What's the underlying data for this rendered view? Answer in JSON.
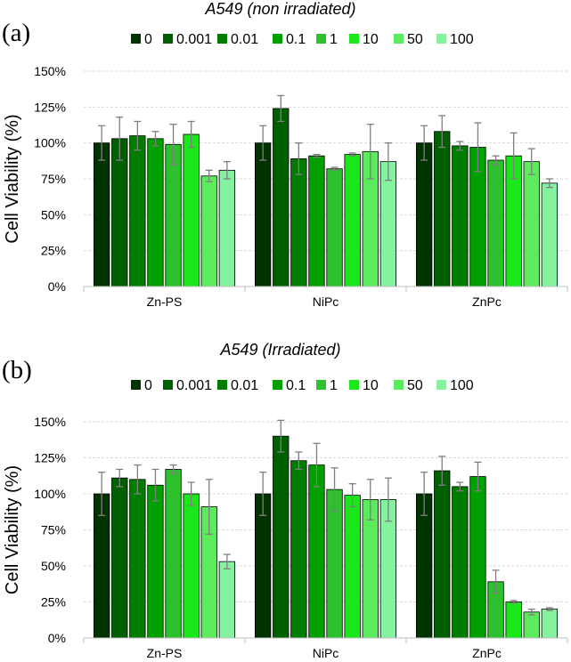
{
  "colors": {
    "series": [
      "#003300",
      "#005F00",
      "#007D00",
      "#00A000",
      "#2EC12E",
      "#1AE81A",
      "#5CEB5C",
      "#85F2A0"
    ],
    "bar_edge": "#000000",
    "error_bar": "#7F7F7F",
    "grid": "#D9D9D9"
  },
  "chart_data": [
    {
      "type": "bar",
      "panel_label": "(a)",
      "title": "A549 (non irradiated)",
      "ylabel": "Cell Viability (%)",
      "xlabel": "",
      "ylim": [
        0,
        150
      ],
      "yticks": [
        0,
        25,
        50,
        75,
        100,
        125,
        150
      ],
      "ytick_labels": [
        "0%",
        "25%",
        "50%",
        "75%",
        "100%",
        "125%",
        "150%"
      ],
      "grid": true,
      "legend_position": "top",
      "categories": [
        "Zn-PS",
        "NiPc",
        "ZnPc"
      ],
      "series": [
        {
          "name": "0",
          "values": [
            100,
            100,
            100
          ],
          "errors": [
            12,
            12,
            12
          ]
        },
        {
          "name": "0.001",
          "values": [
            103,
            124,
            108
          ],
          "errors": [
            15,
            9,
            11
          ]
        },
        {
          "name": "0.01",
          "values": [
            105,
            89,
            98
          ],
          "errors": [
            10,
            11,
            3
          ]
        },
        {
          "name": "0.1",
          "values": [
            103,
            91,
            97
          ],
          "errors": [
            5,
            1,
            17
          ]
        },
        {
          "name": "1",
          "values": [
            99,
            82,
            88
          ],
          "errors": [
            14,
            1,
            3
          ]
        },
        {
          "name": "10",
          "values": [
            106,
            92,
            91
          ],
          "errors": [
            9,
            1,
            16
          ]
        },
        {
          "name": "50",
          "values": [
            77,
            94,
            87
          ],
          "errors": [
            4,
            19,
            9
          ]
        },
        {
          "name": "100",
          "values": [
            81,
            87,
            72
          ],
          "errors": [
            6,
            13,
            3
          ]
        }
      ]
    },
    {
      "type": "bar",
      "panel_label": "(b)",
      "title": "A549 (Irradiated)",
      "ylabel": "Cell Viability (%)",
      "xlabel": "",
      "ylim": [
        0,
        150
      ],
      "yticks": [
        0,
        25,
        50,
        75,
        100,
        125,
        150
      ],
      "ytick_labels": [
        "0%",
        "25%",
        "50%",
        "75%",
        "100%",
        "125%",
        "150%"
      ],
      "grid": true,
      "legend_position": "top",
      "categories": [
        "Zn-PS",
        "NiPc",
        "ZnPc"
      ],
      "series": [
        {
          "name": "0",
          "values": [
            100,
            100,
            100
          ],
          "errors": [
            15,
            15,
            15
          ]
        },
        {
          "name": "0.001",
          "values": [
            111,
            140,
            116
          ],
          "errors": [
            6,
            11,
            10
          ]
        },
        {
          "name": "0.01",
          "values": [
            110,
            123,
            105
          ],
          "errors": [
            10,
            6,
            3
          ]
        },
        {
          "name": "0.1",
          "values": [
            106,
            120,
            112
          ],
          "errors": [
            11,
            15,
            10
          ]
        },
        {
          "name": "1",
          "values": [
            117,
            103,
            39
          ],
          "errors": [
            3,
            15,
            8
          ]
        },
        {
          "name": "10",
          "values": [
            100,
            99,
            25
          ],
          "errors": [
            8,
            8,
            1
          ]
        },
        {
          "name": "50",
          "values": [
            91,
            96,
            18
          ],
          "errors": [
            19,
            14,
            2
          ]
        },
        {
          "name": "100",
          "values": [
            53,
            96,
            20
          ],
          "errors": [
            5,
            15,
            1
          ]
        }
      ]
    }
  ]
}
